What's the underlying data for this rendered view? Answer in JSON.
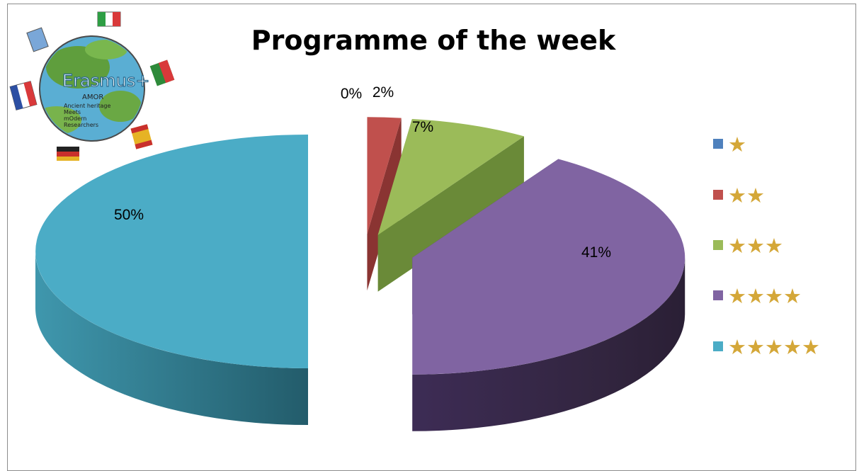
{
  "chart_data": {
    "type": "pie",
    "title": "Programme of the week",
    "categories": [
      "★",
      "★★",
      "★★★",
      "★★★★",
      "★★★★★"
    ],
    "values": [
      0,
      2,
      7,
      41,
      50
    ],
    "value_labels": [
      "0%",
      "2%",
      "7%",
      "41%",
      "50%"
    ],
    "colors": [
      "#4f81bd",
      "#c0504d",
      "#9bbb59",
      "#8064a2",
      "#4bacc6"
    ],
    "star_color": "#d4a738",
    "style": "3d-exploded",
    "legend_position": "right"
  },
  "logo": {
    "text": "Erasmus+",
    "sub": "AMOR",
    "lines": [
      "Ancient heritage",
      "Meets",
      "mOdern",
      "Researchers"
    ]
  }
}
